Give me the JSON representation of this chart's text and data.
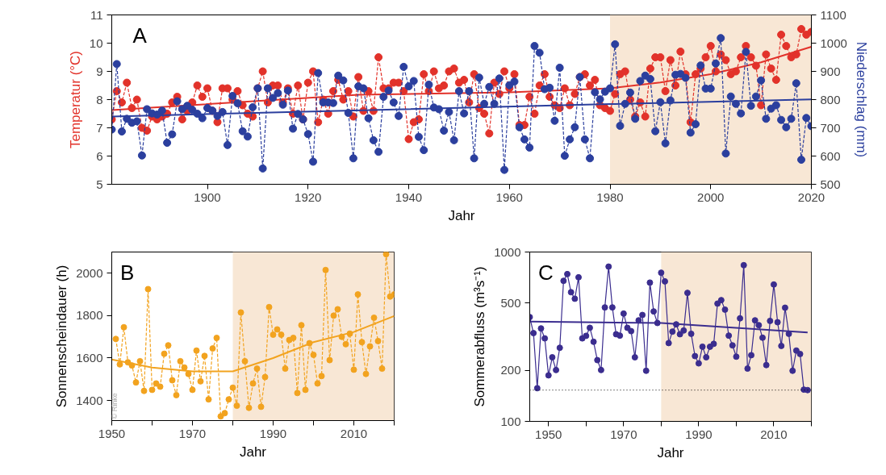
{
  "chart_data": [
    {
      "type": "line",
      "title": "A",
      "xlabel": "Jahr",
      "ylabel": "Temperatur (°C)",
      "y2label": "Niederschlag (mm)",
      "xlim": [
        1881,
        2020
      ],
      "xticks": [
        1900,
        1920,
        1940,
        1960,
        1980,
        2000,
        2020
      ],
      "ylim": [
        5,
        11
      ],
      "yticks": [
        5,
        6,
        7,
        8,
        9,
        10,
        11
      ],
      "y2lim": [
        500,
        1100
      ],
      "y2ticks": [
        500,
        600,
        700,
        800,
        900,
        1000,
        1100
      ],
      "bands": [
        {
          "axis": "x",
          "from": 1980,
          "to": 2020,
          "color": "#f8e7d5"
        }
      ],
      "x": [
        1881,
        1882,
        1883,
        1884,
        1885,
        1886,
        1887,
        1888,
        1889,
        1890,
        1891,
        1892,
        1893,
        1894,
        1895,
        1896,
        1897,
        1898,
        1899,
        1900,
        1901,
        1902,
        1903,
        1904,
        1905,
        1906,
        1907,
        1908,
        1909,
        1910,
        1911,
        1912,
        1913,
        1914,
        1915,
        1916,
        1917,
        1918,
        1919,
        1920,
        1921,
        1922,
        1923,
        1924,
        1925,
        1926,
        1927,
        1928,
        1929,
        1930,
        1931,
        1932,
        1933,
        1934,
        1935,
        1936,
        1937,
        1938,
        1939,
        1940,
        1941,
        1942,
        1943,
        1944,
        1945,
        1946,
        1947,
        1948,
        1949,
        1950,
        1951,
        1952,
        1953,
        1954,
        1955,
        1956,
        1957,
        1958,
        1959,
        1960,
        1961,
        1962,
        1963,
        1964,
        1965,
        1966,
        1967,
        1968,
        1969,
        1970,
        1971,
        1972,
        1973,
        1974,
        1975,
        1976,
        1977,
        1978,
        1979,
        1980,
        1981,
        1982,
        1983,
        1984,
        1985,
        1986,
        1987,
        1988,
        1989,
        1990,
        1991,
        1992,
        1993,
        1994,
        1995,
        1996,
        1997,
        1998,
        1999,
        2000,
        2001,
        2002,
        2003,
        2004,
        2005,
        2006,
        2007,
        2008,
        2009,
        2010,
        2011,
        2012,
        2013,
        2014,
        2015,
        2016,
        2017,
        2018,
        2019,
        2020
      ],
      "series": [
        {
          "color": "#e2322a",
          "marker": "circle",
          "line_style": "dashed",
          "values": [
            7.3,
            8.3,
            7.9,
            8.6,
            7.7,
            8.0,
            7.0,
            6.9,
            7.4,
            7.3,
            7.4,
            7.5,
            7.9,
            8.1,
            7.3,
            7.6,
            7.9,
            8.5,
            8.1,
            8.4,
            7.6,
            7.2,
            8.4,
            8.4,
            8.0,
            8.3,
            7.8,
            7.5,
            7.4,
            8.4,
            9.0,
            7.9,
            8.5,
            8.5,
            7.9,
            8.4,
            7.5,
            8.5,
            7.3,
            8.6,
            9.0,
            7.2,
            8.0,
            7.5,
            8.3,
            8.7,
            8.0,
            8.3,
            7.4,
            8.8,
            7.6,
            8.3,
            7.6,
            9.5,
            8.4,
            8.4,
            8.6,
            8.6,
            8.3,
            6.6,
            7.2,
            7.3,
            8.9,
            8.3,
            9.0,
            8.4,
            8.5,
            9.0,
            9.1,
            8.6,
            8.7,
            7.9,
            8.9,
            7.7,
            7.5,
            6.8,
            8.6,
            8.2,
            9.0,
            8.4,
            8.9,
            7.1,
            7.1,
            8.1,
            7.5,
            8.5,
            8.9,
            8.1,
            7.8,
            7.7,
            8.4,
            7.8,
            8.2,
            8.8,
            8.9,
            8.5,
            8.7,
            7.8,
            7.7,
            7.6,
            8.2,
            8.9,
            9.0,
            8.0,
            7.4,
            7.9,
            7.4,
            9.1,
            9.5,
            9.5,
            8.3,
            9.4,
            8.5,
            9.7,
            8.9,
            7.2,
            8.9,
            9.1,
            9.5,
            9.9,
            9.0,
            9.6,
            9.4,
            8.9,
            9.0,
            9.5,
            9.9,
            9.5,
            9.2,
            7.8,
            9.6,
            9.1,
            8.7,
            10.3,
            9.9,
            9.5,
            9.6,
            10.5,
            10.3,
            10.4
          ]
        },
        {
          "color": "#e2322a",
          "marker": "none",
          "line_style": "solid",
          "x": [
            1881,
            1930,
            1960,
            1980,
            1990,
            2000,
            2010,
            2020
          ],
          "values": [
            7.63,
            8.17,
            8.26,
            8.4,
            8.61,
            8.9,
            9.32,
            9.87
          ]
        },
        {
          "color": "#2b3f9e",
          "marker": "circle",
          "line_style": "dashed",
          "axis": "y2",
          "values": [
            694,
            926,
            687,
            732,
            718,
            723,
            602,
            766,
            751,
            747,
            761,
            647,
            677,
            794,
            766,
            778,
            764,
            750,
            734,
            770,
            761,
            742,
            756,
            639,
            813,
            787,
            688,
            669,
            773,
            840,
            556,
            840,
            806,
            823,
            782,
            832,
            697,
            749,
            730,
            678,
            580,
            894,
            790,
            790,
            788,
            885,
            868,
            753,
            592,
            847,
            840,
            734,
            656,
            615,
            810,
            832,
            790,
            742,
            916,
            847,
            866,
            668,
            621,
            853,
            772,
            766,
            690,
            756,
            656,
            830,
            751,
            830,
            592,
            878,
            785,
            845,
            785,
            875,
            551,
            851,
            864,
            702,
            659,
            630,
            990,
            966,
            837,
            842,
            725,
            913,
            601,
            659,
            702,
            880,
            659,
            592,
            826,
            801,
            828,
            840,
            996,
            707,
            785,
            825,
            732,
            866,
            885,
            873,
            688,
            791,
            645,
            797,
            888,
            891,
            877,
            683,
            713,
            921,
            839,
            839,
            928,
            1018,
            609,
            811,
            785,
            751,
            969,
            778,
            811,
            868,
            732,
            768,
            780,
            728,
            702,
            732,
            858,
            587,
            735,
            706
          ]
        },
        {
          "color": "#2b3f9e",
          "marker": "none",
          "line_style": "solid",
          "axis": "y2",
          "x": [
            1881,
            1980,
            2020
          ],
          "values": [
            740,
            784,
            801
          ]
        }
      ]
    },
    {
      "type": "line",
      "title": "B",
      "xlabel": "Jahr",
      "ylabel": "Sonnenscheindauer (h)",
      "xlim": [
        1950,
        2020
      ],
      "xticks": [
        1950,
        {
          "value": 1960,
          "label": null
        },
        1970,
        {
          "value": 1980,
          "label": null
        },
        1990,
        {
          "value": 2000,
          "label": null
        },
        2010,
        {
          "value": 2020,
          "label": null
        }
      ],
      "ylim": [
        1305,
        2100
      ],
      "yticks": [
        1400,
        1600,
        1800,
        2000
      ],
      "bands": [
        {
          "axis": "x",
          "from": 1980,
          "to": 2020,
          "color": "#f8e7d5"
        }
      ],
      "annotations": [
        "© Rinke"
      ],
      "series": [
        {
          "color": "#f2a31f",
          "marker": "circle",
          "line_style": "dashed",
          "x": [
            1951,
            1952,
            1953,
            1954,
            1955,
            1956,
            1957,
            1958,
            1959,
            1960,
            1961,
            1962,
            1963,
            1964,
            1965,
            1966,
            1967,
            1968,
            1969,
            1970,
            1971,
            1972,
            1973,
            1974,
            1975,
            1976,
            1977,
            1978,
            1979,
            1980,
            1981,
            1982,
            1983,
            1984,
            1985,
            1986,
            1987,
            1988,
            1989,
            1990,
            1991,
            1992,
            1993,
            1994,
            1995,
            1996,
            1997,
            1998,
            1999,
            2000,
            2001,
            2002,
            2003,
            2004,
            2005,
            2006,
            2007,
            2008,
            2009,
            2010,
            2011,
            2012,
            2013,
            2014,
            2015,
            2016,
            2017,
            2018,
            2019,
            2020
          ],
          "values": [
            1690,
            1570,
            1745,
            1580,
            1565,
            1485,
            1585,
            1445,
            1925,
            1450,
            1480,
            1465,
            1620,
            1660,
            1495,
            1425,
            1585,
            1555,
            1525,
            1450,
            1635,
            1490,
            1610,
            1405,
            1645,
            1695,
            1325,
            1340,
            1405,
            1460,
            1375,
            1815,
            1585,
            1365,
            1480,
            1550,
            1370,
            1510,
            1840,
            1710,
            1735,
            1710,
            1550,
            1685,
            1695,
            1435,
            1755,
            1450,
            1670,
            1615,
            1480,
            1515,
            2015,
            1590,
            1800,
            1830,
            1700,
            1665,
            1715,
            1545,
            1900,
            1675,
            1525,
            1655,
            1790,
            1680,
            1550,
            2090,
            1890,
            1900
          ]
        },
        {
          "color": "#f2a31f",
          "marker": "none",
          "line_style": "solid",
          "x": [
            1950,
            1960,
            1970,
            1980,
            1990,
            2000,
            2010,
            2020
          ],
          "values": [
            1593,
            1555,
            1537,
            1537,
            1600,
            1675,
            1723,
            1798
          ]
        }
      ]
    },
    {
      "type": "line",
      "title": "C",
      "xlabel": "Jahr",
      "ylabel": "Sommerabfluss (m³s⁻¹)",
      "log": true,
      "xlim": [
        1945,
        2020
      ],
      "xticks": [
        1950,
        {
          "value": 1960,
          "label": null
        },
        1970,
        {
          "value": 1980,
          "label": null
        },
        1990,
        {
          "value": 2000,
          "label": null
        },
        2010,
        {
          "value": 2020,
          "label": null
        }
      ],
      "ylim": [
        100,
        1000
      ],
      "yticks": [
        100,
        200,
        500,
        1000
      ],
      "bands": [
        {
          "axis": "x",
          "from": 1980,
          "to": 2020,
          "color": "#f8e7d5"
        }
      ],
      "ref_lines": [
        {
          "axis": "y",
          "value": 153,
          "color": "#000000",
          "line_style": "dotted"
        }
      ],
      "series": [
        {
          "color": "#3b2d8f",
          "marker": "circle",
          "line_style": "solid",
          "x": [
            1945,
            1946,
            1947,
            1948,
            1949,
            1950,
            1951,
            1952,
            1953,
            1954,
            1955,
            1956,
            1957,
            1958,
            1959,
            1960,
            1961,
            1962,
            1963,
            1964,
            1965,
            1966,
            1967,
            1968,
            1969,
            1970,
            1971,
            1972,
            1973,
            1974,
            1975,
            1976,
            1977,
            1978,
            1979,
            1980,
            1981,
            1982,
            1983,
            1984,
            1985,
            1986,
            1987,
            1988,
            1989,
            1990,
            1991,
            1992,
            1993,
            1994,
            1995,
            1996,
            1997,
            1998,
            1999,
            2000,
            2001,
            2002,
            2003,
            2004,
            2005,
            2006,
            2007,
            2008,
            2009,
            2010,
            2011,
            2012,
            2013,
            2014,
            2015,
            2016,
            2017,
            2018,
            2019
          ],
          "values": [
            413,
            332,
            157,
            354,
            309,
            187,
            239,
            201,
            272,
            676,
            741,
            579,
            530,
            709,
            309,
            320,
            357,
            295,
            230,
            201,
            471,
            820,
            471,
            327,
            321,
            433,
            357,
            341,
            239,
            395,
            425,
            199,
            660,
            446,
            381,
            755,
            671,
            290,
            339,
            374,
            327,
            344,
            574,
            329,
            243,
            220,
            276,
            239,
            276,
            287,
            496,
            520,
            457,
            321,
            281,
            241,
            406,
            836,
            205,
            246,
            395,
            370,
            312,
            215,
            392,
            643,
            385,
            279,
            469,
            329,
            199,
            262,
            250,
            154,
            153
          ]
        },
        {
          "color": "#3b2d8f",
          "marker": "none",
          "line_style": "solid",
          "x": [
            1945,
            1980,
            2019
          ],
          "values": [
            388,
            381,
            335
          ]
        }
      ]
    }
  ]
}
